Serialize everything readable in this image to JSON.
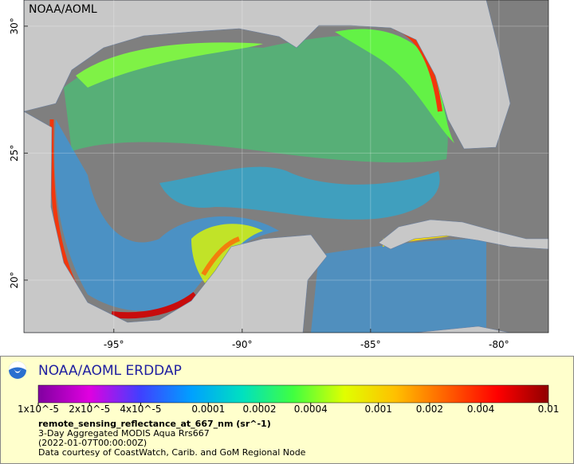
{
  "map": {
    "watermark": "NOAA/AOML",
    "xlim": [
      -98.5,
      -78.07
    ],
    "ylim": [
      17.93,
      31.03
    ],
    "xticks": [
      {
        "value": -95,
        "label": "-95°"
      },
      {
        "value": -90,
        "label": "-90°"
      },
      {
        "value": -85,
        "label": "-85°"
      },
      {
        "value": -80,
        "label": "-80°"
      }
    ],
    "yticks": [
      {
        "value": 20,
        "label": "20°"
      },
      {
        "value": 25,
        "label": "25°"
      },
      {
        "value": 30,
        "label": "30°"
      }
    ]
  },
  "legend": {
    "title": "NOAA/AOML ERDDAP",
    "colorbar": {
      "log_scale": true,
      "lim": [
        1e-05,
        0.01
      ],
      "ticks": [
        {
          "value": 1e-05,
          "label": "1x10^-5"
        },
        {
          "value": 2e-05,
          "label": "2x10^-5"
        },
        {
          "value": 4e-05,
          "label": "4x10^-5"
        },
        0.0001,
        0.0002,
        0.0004,
        0.001,
        0.002,
        0.004,
        0.01
      ],
      "colors": [
        "#8000a0",
        "#e000e0",
        "#4040ff",
        "#00a0ff",
        "#00e0c0",
        "#40ff40",
        "#e0ff00",
        "#ffc000",
        "#ff6000",
        "#ff0000",
        "#900000"
      ]
    },
    "variable": "remote_sensing_reflectance_at_667_nm (sr^-1)",
    "dataset": "3-Day Aggregated MODIS Aqua Rrs667",
    "time": "(2022-01-07T00:00:00Z)",
    "credit": "Data courtesy of CoastWatch, Carib. and GoM Regional Node"
  }
}
